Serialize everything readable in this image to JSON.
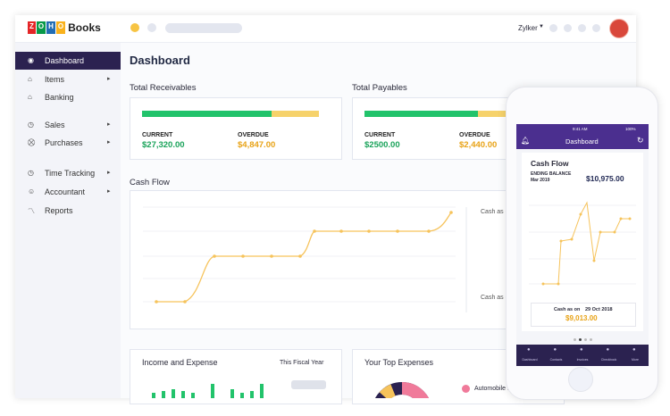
{
  "logo": {
    "brand": [
      "Z",
      "O",
      "H",
      "O"
    ],
    "product": "Books"
  },
  "topbar": {
    "organization": "Zylker"
  },
  "sidebar": {
    "items": [
      "Dashboard",
      "Items",
      "Banking",
      "Sales",
      "Purchases",
      "Time Tracking",
      "Accountant",
      "Reports"
    ]
  },
  "main": {
    "title": "Dashboard",
    "receivables": {
      "title": "Total Receivables",
      "current_label": "CURRENT",
      "current": "$27,320.00",
      "overdue_label": "OVERDUE",
      "overdue": "$4,847.00"
    },
    "payables": {
      "title": "Total Payables",
      "current_label": "CURRENT",
      "current": "$2500.00",
      "overdue_label": "OVERDUE",
      "overdue": "$2,440.00"
    },
    "cash_flow": {
      "title": "Cash Flow",
      "side_labels": [
        "Cash as o",
        "Cash as o"
      ]
    },
    "income_expense": {
      "title": "Income and Expense",
      "period": "This Fiscal Year"
    },
    "top_expenses": {
      "title": "Your Top Expenses",
      "legend": "Automobile E"
    }
  },
  "phone": {
    "time": "9:41 AM",
    "battery": "100%",
    "header": "Dashboard",
    "card_title": "Cash Flow",
    "ending_label": "ENDING BALANCE",
    "ending_date": "Mar 2019",
    "ending_value": "$10,975.00",
    "cash_as_on": "Cash as on",
    "cash_date": "29 Oct 2018",
    "cash_value": "$9,013.00",
    "tabs": [
      "Dashboard",
      "Contacts",
      "Invoices",
      "Checkbook",
      "More"
    ]
  }
}
